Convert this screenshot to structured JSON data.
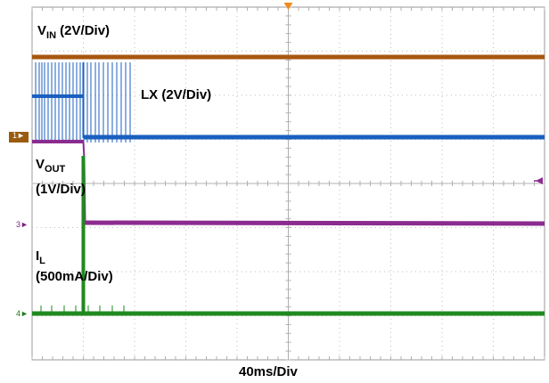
{
  "chart_data": {
    "type": "line",
    "xlabel": "40ms/Div",
    "series": [
      {
        "name_parts": [
          "V",
          "IN",
          " (2V/Div)"
        ],
        "color": "#a8560f"
      },
      {
        "name": "LX (2V/Div)",
        "color": "#1a5fc0"
      },
      {
        "name_parts": [
          "V",
          "OUT",
          "(1V/Div)"
        ],
        "color": "#8b2b8f"
      },
      {
        "name_parts": [
          "I",
          "L",
          "(500mA/Div)"
        ],
        "color": "#1f8a1f"
      }
    ],
    "channel_markers": [
      "1",
      "3",
      "4"
    ],
    "grid": {
      "on": true,
      "x_divisions": 10,
      "y_divisions": 8
    }
  }
}
